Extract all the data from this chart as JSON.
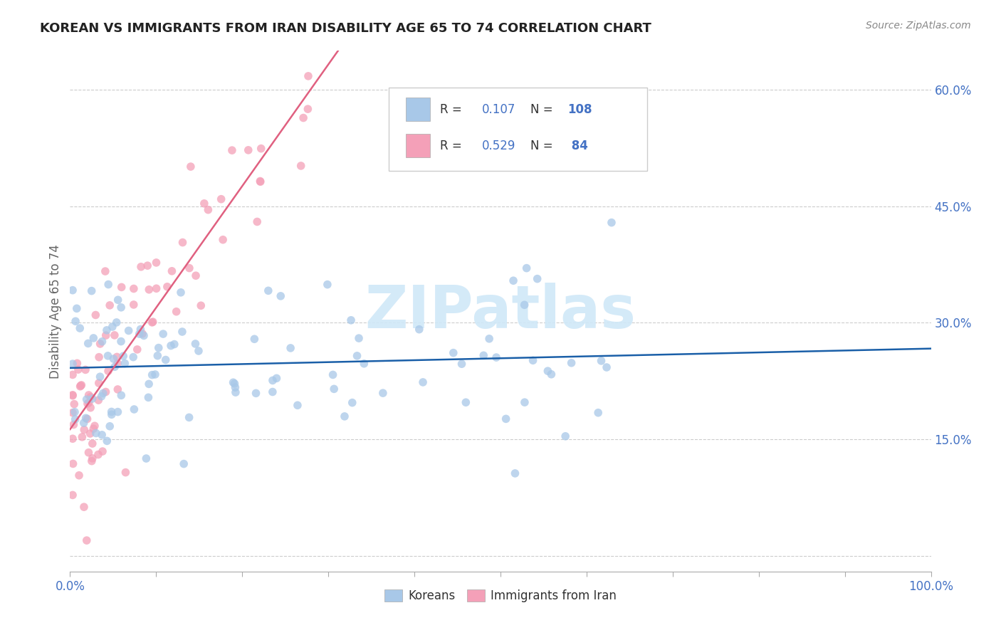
{
  "title": "KOREAN VS IMMIGRANTS FROM IRAN DISABILITY AGE 65 TO 74 CORRELATION CHART",
  "source": "Source: ZipAtlas.com",
  "ylabel": "Disability Age 65 to 74",
  "ytick_vals": [
    0.0,
    0.15,
    0.3,
    0.45,
    0.6
  ],
  "ytick_labels": [
    "",
    "15.0%",
    "30.0%",
    "45.0%",
    "60.0%"
  ],
  "xtick_vals": [
    0.0,
    0.1,
    0.2,
    0.3,
    0.4,
    0.5,
    0.6,
    0.7,
    0.8,
    0.9,
    1.0
  ],
  "xlim": [
    0.0,
    1.0
  ],
  "ylim": [
    -0.02,
    0.65
  ],
  "legend_korean_R": "0.107",
  "legend_korean_N": "108",
  "legend_iran_R": "0.529",
  "legend_iran_N": "84",
  "korean_color": "#a8c8e8",
  "iran_color": "#f4a0b8",
  "korean_line_color": "#1a5fa8",
  "iran_line_color": "#e06080",
  "watermark_text": "ZIPatlas",
  "watermark_color": "#d0e8f8",
  "background_color": "#ffffff",
  "grid_color": "#cccccc",
  "title_color": "#222222",
  "label_color": "#4472c4",
  "tick_color": "#666666",
  "legend_R_color": "#333333",
  "legend_N_color": "#4472c4",
  "legend_box_edge": "#cccccc"
}
